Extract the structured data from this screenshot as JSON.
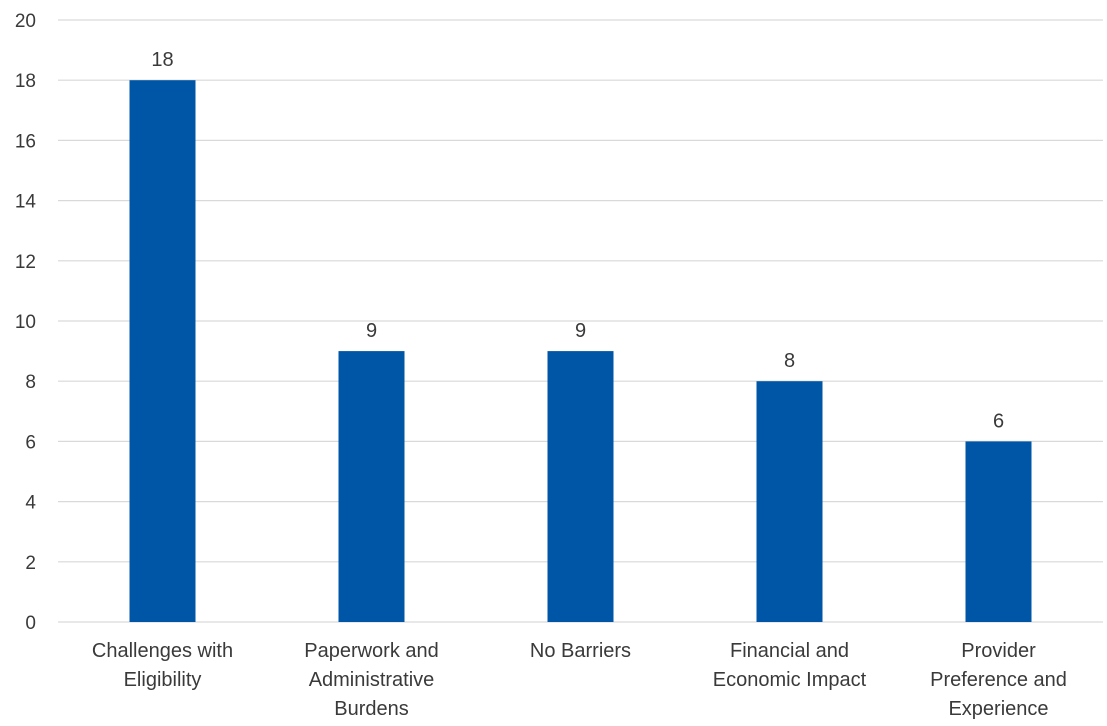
{
  "chart_data": {
    "type": "bar",
    "title": "",
    "xlabel": "",
    "ylabel": "",
    "ylim": [
      0,
      20
    ],
    "ytick_step": 2,
    "grid": true,
    "bar_color": "#0056a6",
    "categories": [
      [
        "Challenges with",
        "Eligibility"
      ],
      [
        "Paperwork and",
        "Administrative",
        "Burdens"
      ],
      [
        "No Barriers"
      ],
      [
        "Financial and",
        "Economic Impact"
      ],
      [
        "Provider",
        "Preference and",
        "Experience"
      ]
    ],
    "values": [
      18,
      9,
      9,
      8,
      6
    ],
    "yticks": [
      "0",
      "2",
      "4",
      "6",
      "8",
      "10",
      "12",
      "14",
      "16",
      "18",
      "20"
    ]
  }
}
